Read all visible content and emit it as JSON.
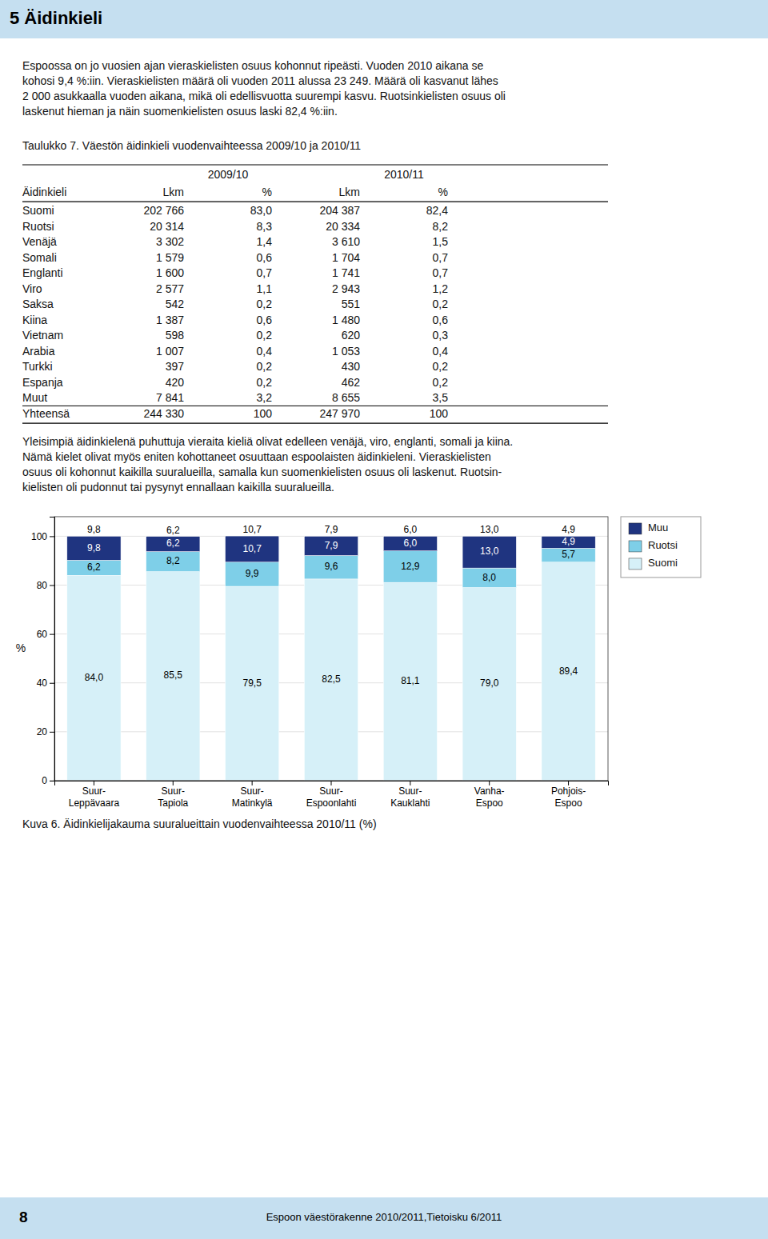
{
  "page": {
    "title": "5 Äidinkieli",
    "title_bg": "#c5dff0",
    "para1_lines": [
      "Espoossa on jo vuosien ajan vieraskielisten osuus kohonnut ripeästi. Vuoden 2010 aikana se",
      "kohosi 9,4 %:iin. Vieraskielisten määrä oli vuoden 2011 alussa 23 249. Määrä oli kasvanut lähes",
      "2 000 asukkaalla vuoden aikana, mikä oli edellisvuotta suurempi kasvu. Ruotsinkielisten osuus oli",
      "laskenut hieman ja näin suomenkielisten osuus laski 82,4 %:iin."
    ],
    "table": {
      "caption": "Taulukko 7. Väestön äidinkieli vuodenvaihteessa 2009/10 ja 2010/11",
      "year_headers": [
        "2009/10",
        "2010/11"
      ],
      "headers": [
        "Äidinkieli",
        "Lkm",
        "%",
        "Lkm",
        "%"
      ],
      "rows": [
        [
          "Suomi",
          "202 766",
          "83,0",
          "204 387",
          "82,4"
        ],
        [
          "Ruotsi",
          "20 314",
          "8,3",
          "20 334",
          "8,2"
        ],
        [
          "Venäjä",
          "3 302",
          "1,4",
          "3 610",
          "1,5"
        ],
        [
          "Somali",
          "1 579",
          "0,6",
          "1 704",
          "0,7"
        ],
        [
          "Englanti",
          "1 600",
          "0,7",
          "1 741",
          "0,7"
        ],
        [
          "Viro",
          "2 577",
          "1,1",
          "2 943",
          "1,2"
        ],
        [
          "Saksa",
          "542",
          "0,2",
          "551",
          "0,2"
        ],
        [
          "Kiina",
          "1 387",
          "0,6",
          "1 480",
          "0,6"
        ],
        [
          "Vietnam",
          "598",
          "0,2",
          "620",
          "0,3"
        ],
        [
          "Arabia",
          "1 007",
          "0,4",
          "1 053",
          "0,4"
        ],
        [
          "Turkki",
          "397",
          "0,2",
          "430",
          "0,2"
        ],
        [
          "Espanja",
          "420",
          "0,2",
          "462",
          "0,2"
        ],
        [
          "Muut",
          "7 841",
          "3,2",
          "8 655",
          "3,5"
        ],
        [
          "Yhteensä",
          "244 330",
          "100",
          "247 970",
          "100"
        ]
      ]
    },
    "para2_lines": [
      "Yleisimpiä äidinkielenä puhuttuja vieraita kieliä olivat edelleen venäjä, viro, englanti, somali ja kiina.",
      "Nämä kielet olivat myös eniten kohottaneet osuuttaan espoolaisten äidinkieleni. Vieraskielisten",
      "osuus oli kohonnut kaikilla suuralueilla, samalla kun  suomenkielisten osuus oli laskenut. Ruotsin-",
      "kielisten oli pudonnut tai pysynyt ennallaan kaikilla suuralueilla."
    ],
    "footer_bg": "#c5dff0",
    "footer_left": "8",
    "footer_center": "Espoon väestörakenne 2010/2011,Tietoisku 6/2011"
  },
  "chart_data": {
    "type": "bar",
    "stacked": true,
    "title": "Kuva 6. Äidinkielijakauma suuralueittain vuodenvaihteessa 2010/11 (%)",
    "ylabel": "%",
    "categories": [
      "Suur-\nLeppävaara",
      "Suur-\nTapiola",
      "Suur-\nMatinkylä",
      "Suur-\nEspoonlahti",
      "Suur-\nKauklahti",
      "Vanha-\nEspoo",
      "Pohjois-\nEspoo"
    ],
    "series": [
      {
        "name": "Suomi",
        "color": "#d6f0f8",
        "values": [
          84.0,
          85.5,
          79.5,
          82.5,
          81.1,
          79.0,
          89.4
        ],
        "value_labels": [
          "84,0",
          "85,5",
          "79,5",
          "82,5",
          "81,1",
          "79,0",
          "89,4"
        ]
      },
      {
        "name": "Ruotsi",
        "color": "#7ecfe8",
        "values": [
          6.2,
          8.2,
          9.9,
          9.6,
          12.9,
          8.0,
          5.7
        ],
        "value_labels": [
          "6,2",
          "8,2",
          "9,9",
          "9,6",
          "12,9",
          "8,0",
          "5,7"
        ]
      },
      {
        "name": "Muu",
        "color": "#1f3480",
        "values": [
          9.8,
          6.2,
          10.7,
          7.9,
          6.0,
          13.0,
          4.9
        ],
        "value_labels": [
          "9,8",
          "6,2",
          "10,7",
          "7,9",
          "6,0",
          "13,0",
          "4,9"
        ]
      }
    ],
    "ylim": [
      0,
      108
    ],
    "yticks": [
      0,
      20,
      40,
      60,
      80,
      100
    ],
    "grid": true,
    "legend": "right",
    "data_labels": true
  }
}
